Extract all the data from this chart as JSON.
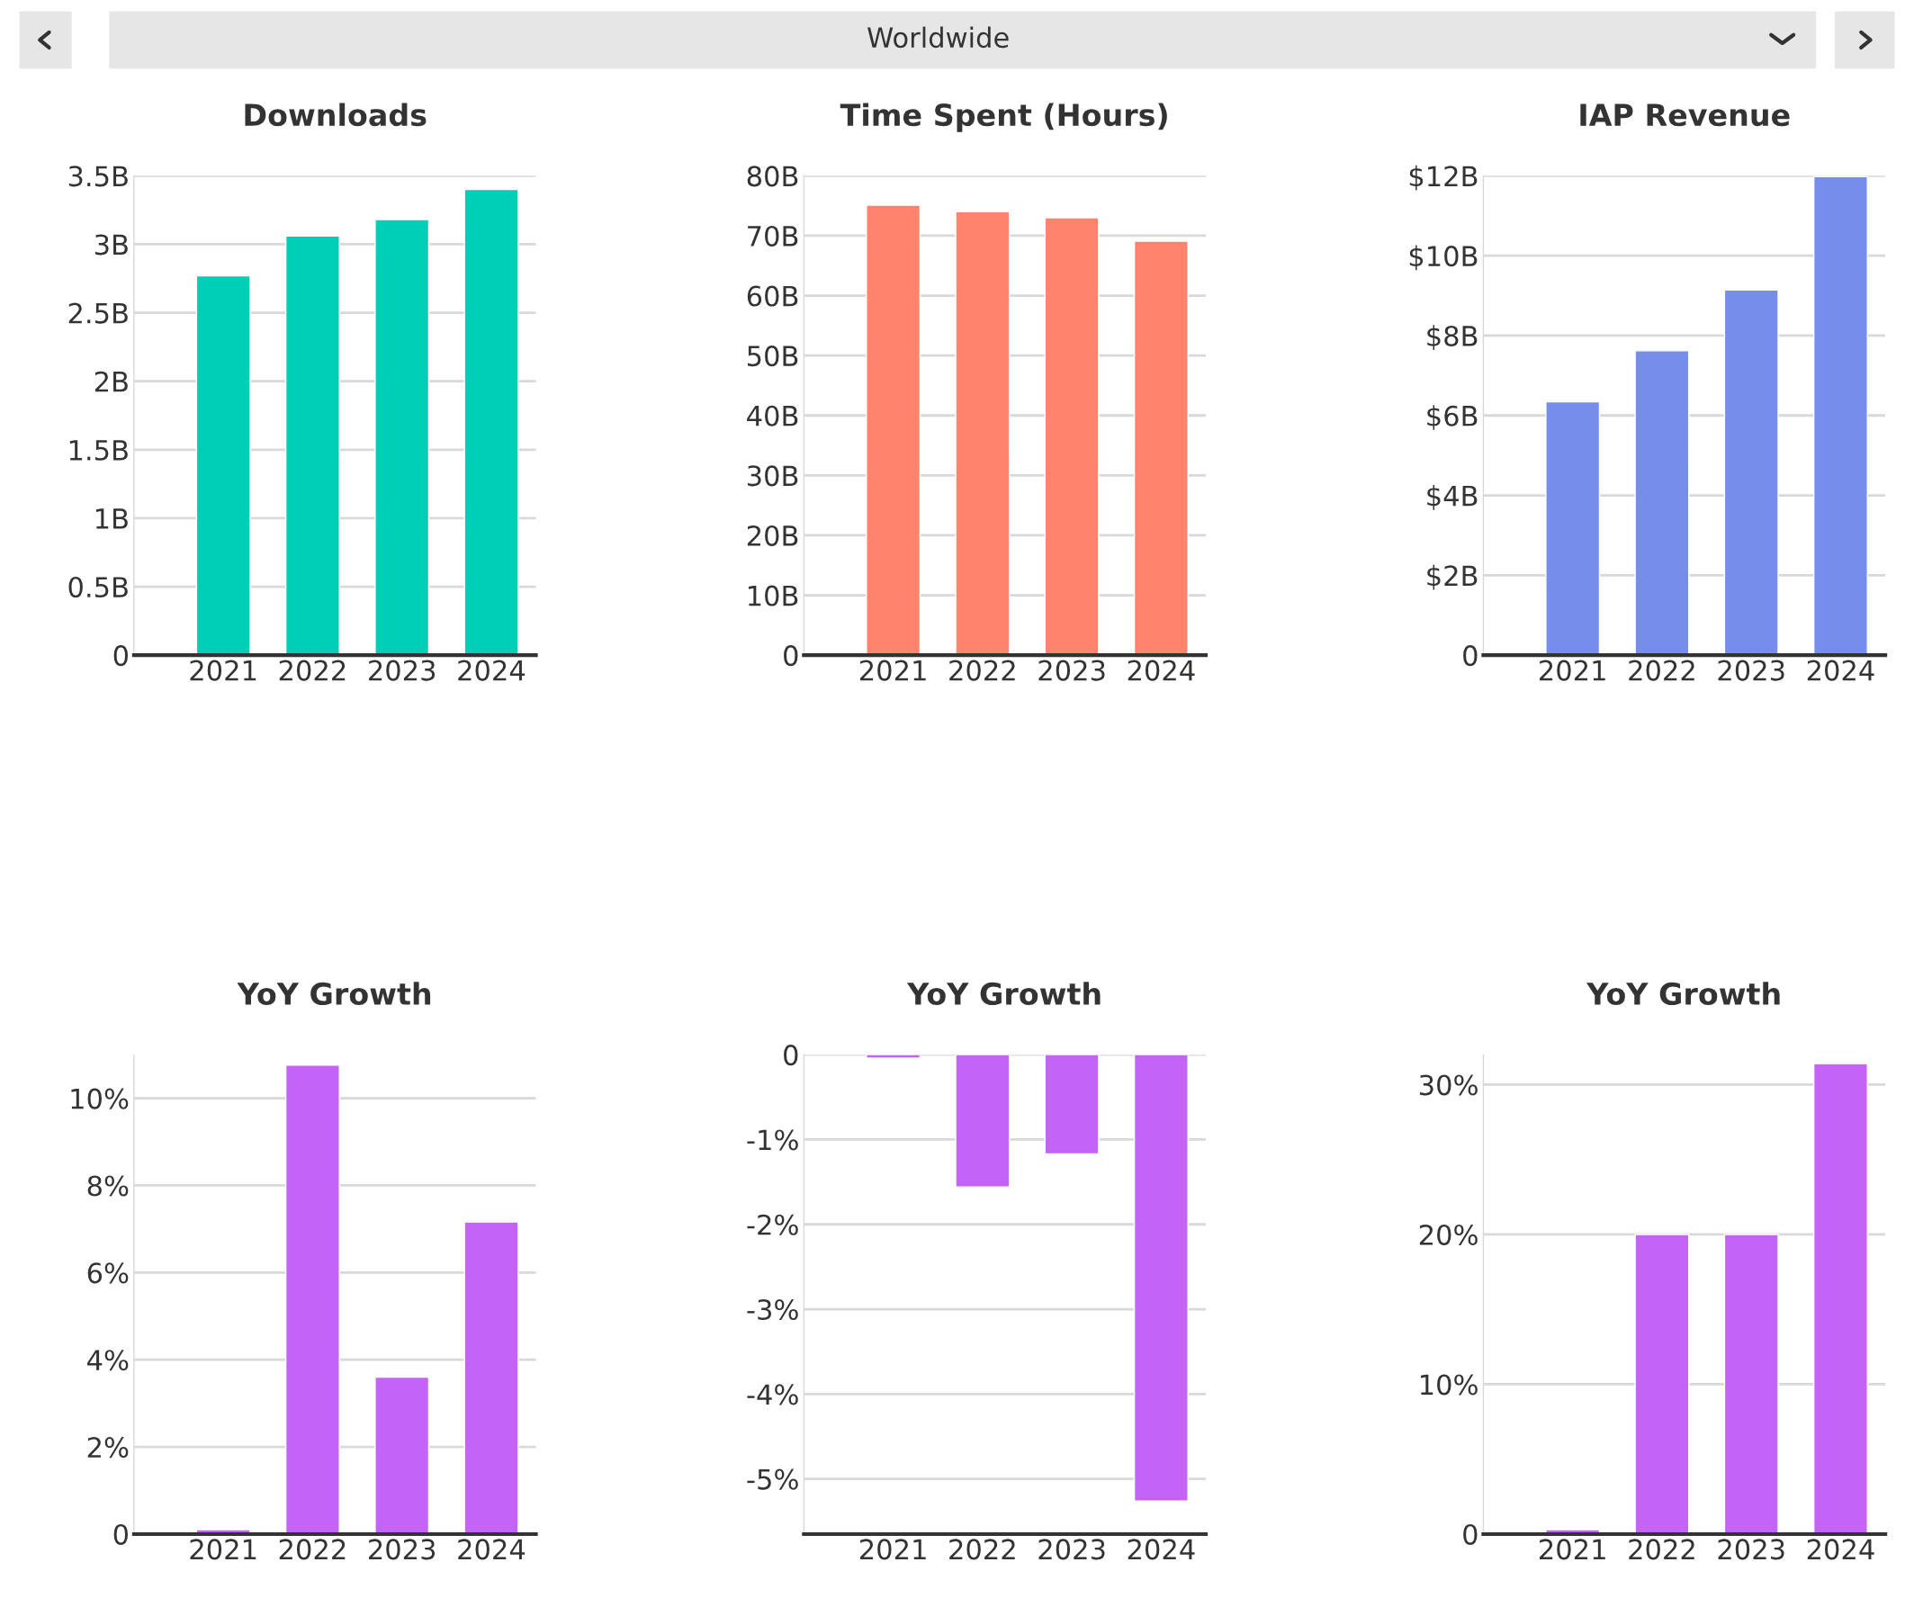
{
  "chart_data": [
    {
      "type": "other",
      "title": "Worldwide"
    },
    {
      "type": "bar",
      "title": "Downloads",
      "categories": [
        "2021",
        "2022",
        "2023",
        "2024"
      ],
      "values": [
        2.77,
        3.06,
        3.18,
        3.4
      ],
      "color": "#00cfb7",
      "ylim": [
        0,
        3.5
      ],
      "yticks": [
        {
          "value": 0,
          "label": "0"
        },
        {
          "value": 0.5,
          "label": "0.5B"
        },
        {
          "value": 1,
          "label": "1B"
        },
        {
          "value": 1.5,
          "label": "1.5B"
        },
        {
          "value": 2,
          "label": "2B"
        },
        {
          "value": 2.5,
          "label": "2.5B"
        },
        {
          "value": 3,
          "label": "3B"
        },
        {
          "value": 3.5,
          "label": "3.5B"
        }
      ],
      "grid": "y"
    },
    {
      "type": "bar",
      "title": "Time Spent (Hours)",
      "categories": [
        "2021",
        "2022",
        "2023",
        "2024"
      ],
      "values": [
        75.1,
        74.0,
        73.0,
        69.1
      ],
      "color": "#ff836d",
      "ylim": [
        0,
        80
      ],
      "yticks": [
        {
          "value": 0,
          "label": "0"
        },
        {
          "value": 10,
          "label": "10B"
        },
        {
          "value": 20,
          "label": "20B"
        },
        {
          "value": 30,
          "label": "30B"
        },
        {
          "value": 40,
          "label": "40B"
        },
        {
          "value": 50,
          "label": "50B"
        },
        {
          "value": 60,
          "label": "60B"
        },
        {
          "value": 70,
          "label": "70B"
        },
        {
          "value": 80,
          "label": "80B"
        }
      ],
      "grid": "y"
    },
    {
      "type": "bar",
      "title": "IAP Revenue",
      "categories": [
        "2021",
        "2022",
        "2023",
        "2024"
      ],
      "values": [
        6.34,
        7.62,
        9.14,
        11.98
      ],
      "color": "#768deb",
      "ylim": [
        0,
        12
      ],
      "yticks": [
        {
          "value": 0,
          "label": "0"
        },
        {
          "value": 2,
          "label": "$2B"
        },
        {
          "value": 4,
          "label": "$4B"
        },
        {
          "value": 6,
          "label": "$6B"
        },
        {
          "value": 8,
          "label": "$8B"
        },
        {
          "value": 10,
          "label": "$10B"
        },
        {
          "value": 12,
          "label": "$12B"
        }
      ],
      "grid": "y"
    },
    {
      "type": "bar",
      "title": "YoY Growth",
      "categories": [
        "2021",
        "2022",
        "2023",
        "2024"
      ],
      "values": [
        0.1,
        10.76,
        3.6,
        7.16
      ],
      "color": "#c463f7",
      "ylim": [
        0,
        11
      ],
      "yticks": [
        {
          "value": 0,
          "label": "0"
        },
        {
          "value": 2,
          "label": "2%"
        },
        {
          "value": 4,
          "label": "4%"
        },
        {
          "value": 6,
          "label": "6%"
        },
        {
          "value": 8,
          "label": "8%"
        },
        {
          "value": 10,
          "label": "10%"
        }
      ],
      "grid": "y"
    },
    {
      "type": "bar",
      "title": "YoY Growth",
      "categories": [
        "2021",
        "2022",
        "2023",
        "2024"
      ],
      "values": [
        -0.04,
        -1.56,
        -1.17,
        -5.26
      ],
      "color": "#c463f7",
      "ylim": [
        -5.65,
        0
      ],
      "yticks": [
        {
          "value": 0,
          "label": "0"
        },
        {
          "value": -1,
          "label": "-1%"
        },
        {
          "value": -2,
          "label": "-2%"
        },
        {
          "value": -3,
          "label": "-3%"
        },
        {
          "value": -4,
          "label": "-4%"
        },
        {
          "value": -5,
          "label": "-5%"
        }
      ],
      "grid": "y"
    },
    {
      "type": "bar",
      "title": "YoY Growth",
      "categories": [
        "2021",
        "2022",
        "2023",
        "2024"
      ],
      "values": [
        0.3,
        20.0,
        20.0,
        31.4
      ],
      "color": "#c463f7",
      "ylim": [
        0,
        32
      ],
      "yticks": [
        {
          "value": 0,
          "label": "0"
        },
        {
          "value": 10,
          "label": "10%"
        },
        {
          "value": 20,
          "label": "20%"
        },
        {
          "value": 30,
          "label": "30%"
        }
      ],
      "grid": "y"
    }
  ]
}
